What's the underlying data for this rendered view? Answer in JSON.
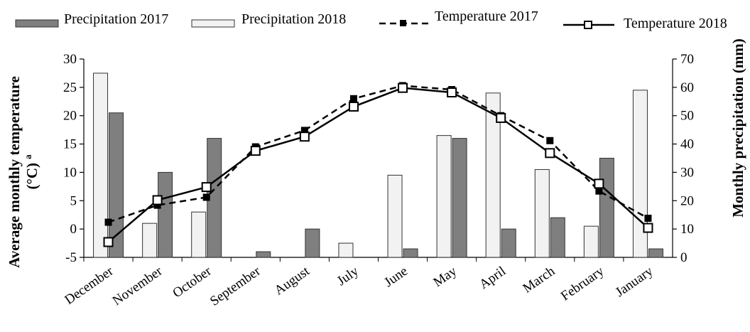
{
  "chart_data": {
    "type": "bar+line",
    "categories": [
      "December",
      "November",
      "October",
      "September",
      "August",
      "July",
      "June",
      "May",
      "April",
      "March",
      "February",
      "January"
    ],
    "series": [
      {
        "name": "Precipitation 2017",
        "kind": "bar",
        "axis": "right",
        "color": "#7f7f7f",
        "values": [
          51,
          30,
          42,
          2,
          10,
          null,
          3,
          42,
          10,
          14,
          35,
          3
        ]
      },
      {
        "name": "Precipitation 2018",
        "kind": "bar",
        "axis": "right",
        "color": "#f2f2f2",
        "values": [
          65,
          12,
          16,
          null,
          null,
          5,
          29,
          43,
          58,
          31,
          11,
          59
        ]
      },
      {
        "name": "Temperature 2017",
        "kind": "line",
        "axis": "left",
        "style": "dashed",
        "marker": "filled-square",
        "values": [
          1.2,
          4.2,
          5.6,
          14.5,
          17.4,
          23.0,
          25.3,
          24.6,
          20.0,
          15.6,
          6.7,
          1.9
        ]
      },
      {
        "name": "Temperature 2018",
        "kind": "line",
        "axis": "left",
        "style": "solid",
        "marker": "open-square",
        "values": [
          -2.3,
          5.1,
          7.4,
          13.8,
          16.3,
          21.6,
          24.9,
          24.1,
          19.6,
          13.4,
          8.0,
          0.2
        ]
      }
    ],
    "y_left": {
      "label": "Average monthly temperature (°C) ª",
      "ylim": [
        -5,
        30
      ],
      "ticks": [
        -5,
        0,
        5,
        10,
        15,
        20,
        25,
        30
      ]
    },
    "y_right": {
      "label": "Monthly precipitation (mm)",
      "ylim": [
        0,
        70
      ],
      "ticks": [
        0,
        10,
        20,
        30,
        40,
        50,
        60,
        70
      ]
    },
    "legend_position": "top"
  },
  "legend": {
    "precip2017": "Precipitation 2017",
    "precip2018": "Precipitation 2018",
    "temp2017": "Temperature 2017",
    "temp2018": "Temperature 2018"
  },
  "axes": {
    "left_title_line1": "Average monthly temperature",
    "left_title_line2": "(°C) ª",
    "right_title": "Monthly precipitation (mm)"
  }
}
